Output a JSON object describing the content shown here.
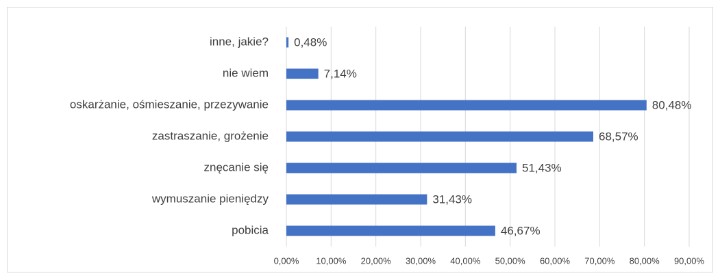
{
  "chart_data": {
    "type": "bar",
    "orientation": "horizontal",
    "categories": [
      "inne, jakie?",
      "nie wiem",
      "oskarżanie, ośmieszanie, przezywanie",
      "zastraszanie, grożenie",
      "znęcanie się",
      "wymuszanie pieniędzy",
      "pobicia"
    ],
    "values": [
      0.48,
      7.14,
      80.48,
      68.57,
      51.43,
      31.43,
      46.67
    ],
    "value_labels": [
      "0,48%",
      "7,14%",
      "80,48%",
      "68,57%",
      "51,43%",
      "31,43%",
      "46,67%"
    ],
    "color": "#4472c4",
    "xlim": [
      0,
      90
    ],
    "xticks": [
      {
        "value": 0,
        "label": "0,00%"
      },
      {
        "value": 10,
        "label": "10,00%"
      },
      {
        "value": 20,
        "label": "20,00%"
      },
      {
        "value": 30,
        "label": "30,00%"
      },
      {
        "value": 40,
        "label": "40,00%"
      },
      {
        "value": 50,
        "label": "50,00%"
      },
      {
        "value": 60,
        "label": "60,00%"
      },
      {
        "value": 70,
        "label": "70,00%"
      },
      {
        "value": 80,
        "label": "80,00%"
      },
      {
        "value": 90,
        "label": "90,00%"
      }
    ],
    "grid": true
  }
}
